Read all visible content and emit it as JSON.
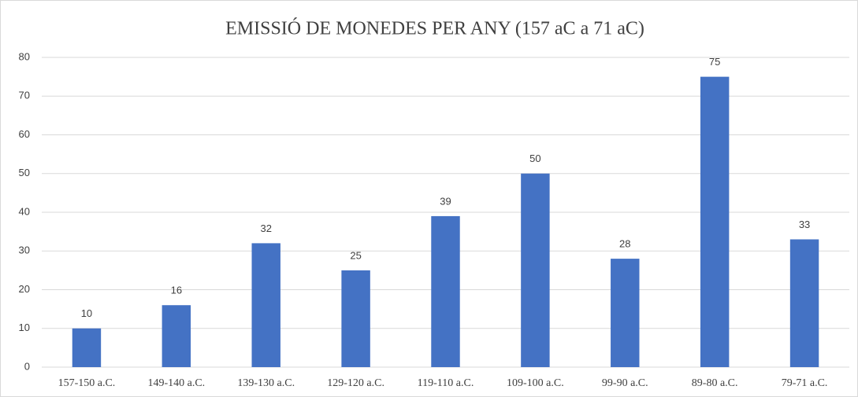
{
  "chart_data": {
    "type": "bar",
    "title": "EMISSIÓ DE MONEDES PER ANY (157 aC a 71 aC)",
    "categories": [
      "157-150 a.C.",
      "149-140 a.C.",
      "139-130 a.C.",
      "129-120 a.C.",
      "119-110 a.C.",
      "109-100 a.C.",
      "99-90 a.C.",
      "89-80 a.C.",
      "79-71 a.C."
    ],
    "values": [
      10,
      16,
      32,
      25,
      39,
      50,
      28,
      75,
      33
    ],
    "color": "#4472c4",
    "ylim": [
      0,
      80
    ],
    "yticks": [
      0,
      10,
      20,
      30,
      40,
      50,
      60,
      70,
      80
    ],
    "grid": true
  }
}
